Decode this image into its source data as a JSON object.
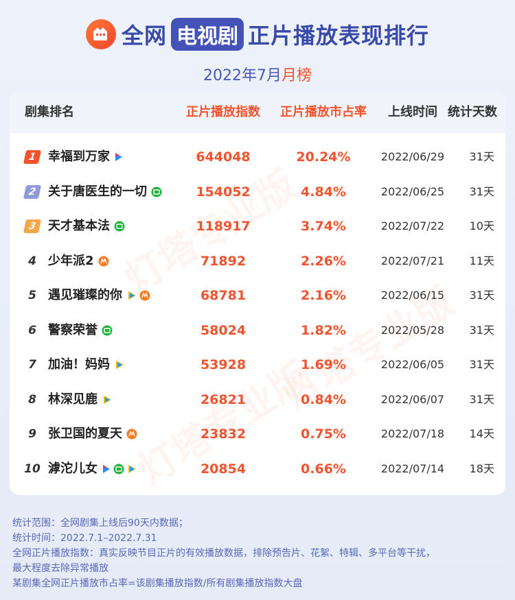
{
  "header": {
    "title_pre": "全网",
    "title_highlight": "电视剧",
    "title_post": "正片播放表现排行",
    "subtitle_date": "2022年7月",
    "subtitle_accent": "月榜",
    "logo_icon": "film-strip-icon",
    "logo_color": "#f3452a",
    "title_color": "#3a4aa8"
  },
  "watermark_text": "灯塔专业版",
  "columns": {
    "rank_name": "剧集排名",
    "index": "正片播放指数",
    "share": "正片播放市占率",
    "release": "上线时间",
    "days": "统计天数"
  },
  "colors": {
    "accent": "#f0532d",
    "rank1": "#f0532d",
    "rank2": "#8f9bd6",
    "rank3": "#f3a64a",
    "iqiyi": "#1fb53a",
    "youku": "#2b8cf2",
    "tencent": "#1f9df5",
    "mango": "#f57b20"
  },
  "chart_data": {
    "type": "table",
    "title": "全网电视剧正片播放表现排行",
    "subtitle": "2022年7月月榜",
    "rows": [
      {
        "rank": "1",
        "name": "幸福到万家",
        "platforms": [
          "youku"
        ],
        "index": "644048",
        "share": "20.24%",
        "release": "2022/06/29",
        "days": "31天"
      },
      {
        "rank": "2",
        "name": "关于唐医生的一切",
        "platforms": [
          "iqiyi"
        ],
        "index": "154052",
        "share": "4.84%",
        "release": "2022/06/25",
        "days": "31天"
      },
      {
        "rank": "3",
        "name": "天才基本法",
        "platforms": [
          "iqiyi"
        ],
        "index": "118917",
        "share": "3.74%",
        "release": "2022/07/22",
        "days": "10天"
      },
      {
        "rank": "4",
        "name": "少年派2",
        "platforms": [
          "mango"
        ],
        "index": "71892",
        "share": "2.26%",
        "release": "2022/07/21",
        "days": "11天"
      },
      {
        "rank": "5",
        "name": "遇见璀璨的你",
        "platforms": [
          "tencent",
          "mango"
        ],
        "index": "68781",
        "share": "2.16%",
        "release": "2022/06/15",
        "days": "31天"
      },
      {
        "rank": "6",
        "name": "警察荣誉",
        "platforms": [
          "iqiyi"
        ],
        "index": "58024",
        "share": "1.82%",
        "release": "2022/05/28",
        "days": "31天"
      },
      {
        "rank": "7",
        "name": "加油！妈妈",
        "platforms": [
          "tencent"
        ],
        "index": "53928",
        "share": "1.69%",
        "release": "2022/06/05",
        "days": "31天"
      },
      {
        "rank": "8",
        "name": "林深见鹿",
        "platforms": [
          "tencent"
        ],
        "index": "26821",
        "share": "0.84%",
        "release": "2022/06/07",
        "days": "31天"
      },
      {
        "rank": "9",
        "name": "张卫国的夏天",
        "platforms": [
          "mango"
        ],
        "index": "23832",
        "share": "0.75%",
        "release": "2022/07/18",
        "days": "14天"
      },
      {
        "rank": "10",
        "name": "滹沱儿女",
        "platforms": [
          "youku",
          "iqiyi",
          "tencent"
        ],
        "index": "20854",
        "share": "0.66%",
        "release": "2022/07/14",
        "days": "18天"
      }
    ]
  },
  "notes": [
    "统计范围：全网剧集上线后90天内数据；",
    "统计时间：2022.7.1–2022.7.31",
    "全网正片播放指数：真实反映节目正片的有效播放数据，排除预告片、花絮、特辑、多平台等干扰，",
    "最大程度去除异常播放",
    "某剧集全网正片播放市占率=该剧集播放指数/所有剧集播放指数大盘"
  ]
}
